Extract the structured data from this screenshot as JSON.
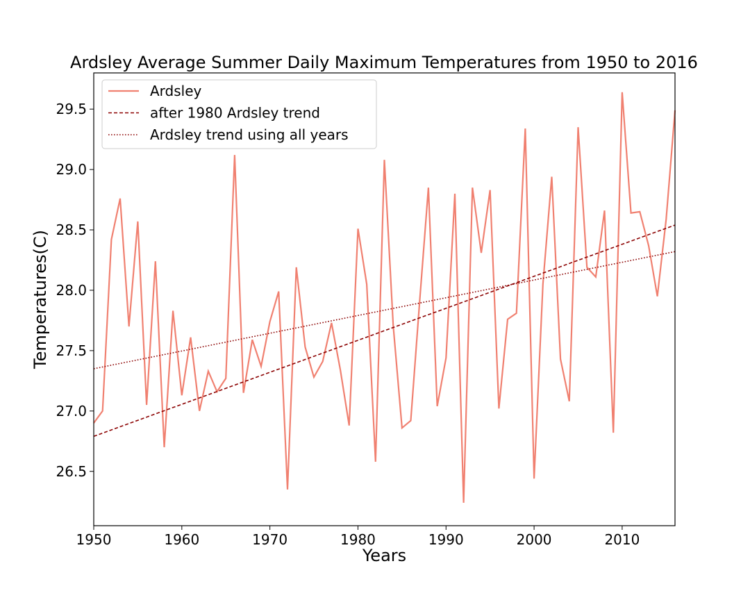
{
  "chart_data": {
    "type": "line",
    "title": "Ardsley Average Summer Daily Maximum Temperatures from 1950 to 2016",
    "xlabel": "Years",
    "ylabel": "Temperatures(C)",
    "xlim": [
      1950,
      2016
    ],
    "ylim": [
      26.05,
      29.8
    ],
    "xticks": [
      1950,
      1960,
      1970,
      1980,
      1990,
      2000,
      2010
    ],
    "yticks": [
      26.5,
      27.0,
      27.5,
      28.0,
      28.5,
      29.0,
      29.5
    ],
    "grid": false,
    "legend_position": "top-left",
    "series": [
      {
        "name": "Ardsley",
        "style": "solid",
        "color": "#f08070",
        "x": [
          1950,
          1951,
          1952,
          1953,
          1954,
          1955,
          1956,
          1957,
          1958,
          1959,
          1960,
          1961,
          1962,
          1963,
          1964,
          1965,
          1966,
          1967,
          1968,
          1969,
          1970,
          1971,
          1972,
          1973,
          1974,
          1975,
          1976,
          1977,
          1978,
          1979,
          1980,
          1981,
          1982,
          1983,
          1984,
          1985,
          1986,
          1987,
          1988,
          1989,
          1990,
          1991,
          1992,
          1993,
          1994,
          1995,
          1996,
          1997,
          1998,
          1999,
          2000,
          2001,
          2002,
          2003,
          2004,
          2005,
          2006,
          2007,
          2008,
          2009,
          2010,
          2011,
          2012,
          2013,
          2014,
          2015,
          2016
        ],
        "y": [
          26.9,
          27.0,
          28.42,
          28.76,
          27.7,
          28.57,
          27.05,
          28.24,
          26.7,
          27.83,
          27.13,
          27.61,
          27.0,
          27.33,
          27.16,
          27.27,
          29.12,
          27.15,
          27.59,
          27.37,
          27.74,
          27.99,
          26.35,
          28.19,
          27.53,
          27.28,
          27.41,
          27.73,
          27.34,
          26.88,
          28.51,
          28.05,
          26.58,
          29.08,
          27.71,
          26.86,
          26.92,
          27.9,
          28.85,
          27.04,
          27.44,
          28.8,
          26.24,
          28.85,
          28.31,
          28.83,
          27.02,
          27.76,
          27.81,
          29.34,
          26.44,
          28.05,
          28.94,
          27.43,
          27.08,
          29.35,
          28.19,
          28.11,
          28.66,
          26.82,
          29.64,
          28.64,
          28.65,
          28.37,
          27.95,
          28.59,
          29.49
        ]
      },
      {
        "name": "after 1980 Ardsley trend",
        "style": "dashed",
        "color": "#8b0000",
        "x": [
          1950,
          2016
        ],
        "y": [
          26.79,
          28.54
        ]
      },
      {
        "name": "Ardsley trend using all years",
        "style": "dotted",
        "color": "#8b0000",
        "x": [
          1950,
          2016
        ],
        "y": [
          27.35,
          28.32
        ]
      }
    ]
  }
}
